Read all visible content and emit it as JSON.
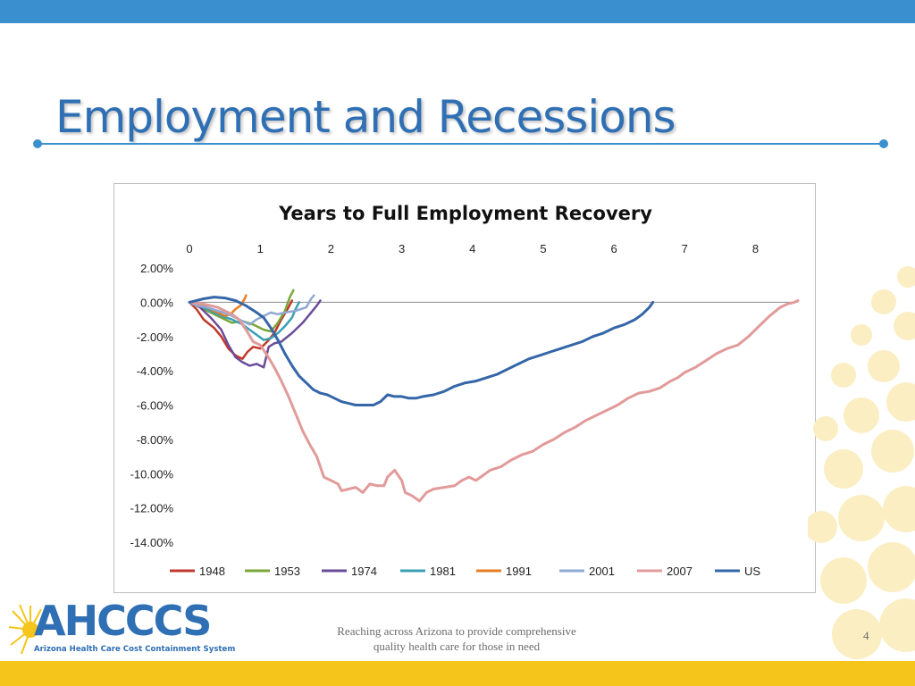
{
  "slide": {
    "title": "Employment and Recessions",
    "tagline_line1": "Reaching across Arizona to provide comprehensive",
    "tagline_line2": "quality health care for those in need",
    "page_number": "4",
    "colors": {
      "accent": "#3a8fcf",
      "title": "#2f6fb4",
      "footer": "#f6c51b"
    }
  },
  "logo": {
    "name": "AHCCCS",
    "subtitle": "Arizona Health Care Cost Containment System",
    "icon": "sun-icon"
  },
  "chart_data": {
    "type": "line",
    "title": "Years to Full Employment Recovery",
    "xlabel": "",
    "ylabel": "",
    "xlim": [
      0,
      8.6
    ],
    "ylim": [
      -14,
      2
    ],
    "x_ticks": [
      "0",
      "1",
      "2",
      "3",
      "4",
      "5",
      "6",
      "7",
      "8"
    ],
    "y_ticks": [
      "2.00%",
      "0.00%",
      "-2.00%",
      "-4.00%",
      "-6.00%",
      "-8.00%",
      "-10.00%",
      "-12.00%",
      "-14.00%"
    ],
    "x_axis_position": "top",
    "legend_position": "bottom",
    "grid": false,
    "series": [
      {
        "name": "1948",
        "color": "#c0392b",
        "points": [
          [
            0,
            0
          ],
          [
            0.1,
            -0.4
          ],
          [
            0.2,
            -1.0
          ],
          [
            0.35,
            -1.5
          ],
          [
            0.45,
            -2.0
          ],
          [
            0.55,
            -2.7
          ],
          [
            0.65,
            -3.1
          ],
          [
            0.75,
            -3.3
          ],
          [
            0.82,
            -2.9
          ],
          [
            0.9,
            -2.6
          ],
          [
            1.0,
            -2.7
          ],
          [
            1.1,
            -2.3
          ],
          [
            1.2,
            -1.8
          ],
          [
            1.3,
            -1.0
          ],
          [
            1.4,
            -0.3
          ],
          [
            1.45,
            0.1
          ]
        ]
      },
      {
        "name": "1953",
        "color": "#7aa63a",
        "points": [
          [
            0,
            0
          ],
          [
            0.15,
            -0.3
          ],
          [
            0.3,
            -0.6
          ],
          [
            0.45,
            -0.9
          ],
          [
            0.6,
            -1.2
          ],
          [
            0.75,
            -1.1
          ],
          [
            0.9,
            -1.3
          ],
          [
            1.05,
            -1.6
          ],
          [
            1.15,
            -1.7
          ],
          [
            1.25,
            -1.2
          ],
          [
            1.35,
            -0.5
          ],
          [
            1.42,
            0.3
          ],
          [
            1.47,
            0.7
          ]
        ]
      },
      {
        "name": "1974",
        "color": "#6b4c9a",
        "points": [
          [
            0,
            0
          ],
          [
            0.15,
            -0.3
          ],
          [
            0.3,
            -0.9
          ],
          [
            0.45,
            -1.6
          ],
          [
            0.55,
            -2.5
          ],
          [
            0.65,
            -3.2
          ],
          [
            0.75,
            -3.5
          ],
          [
            0.85,
            -3.7
          ],
          [
            0.95,
            -3.6
          ],
          [
            1.05,
            -3.8
          ],
          [
            1.12,
            -2.6
          ],
          [
            1.2,
            -2.4
          ],
          [
            1.3,
            -2.3
          ],
          [
            1.45,
            -1.8
          ],
          [
            1.6,
            -1.2
          ],
          [
            1.72,
            -0.6
          ],
          [
            1.8,
            -0.2
          ],
          [
            1.85,
            0.1
          ]
        ]
      },
      {
        "name": "1981",
        "color": "#3aa0b4",
        "points": [
          [
            0,
            0
          ],
          [
            0.15,
            -0.2
          ],
          [
            0.3,
            -0.5
          ],
          [
            0.45,
            -0.8
          ],
          [
            0.6,
            -1.0
          ],
          [
            0.75,
            -1.3
          ],
          [
            0.85,
            -1.6
          ],
          [
            0.95,
            -1.9
          ],
          [
            1.05,
            -2.2
          ],
          [
            1.15,
            -2.1
          ],
          [
            1.25,
            -1.8
          ],
          [
            1.35,
            -1.4
          ],
          [
            1.45,
            -0.9
          ],
          [
            1.5,
            -0.4
          ],
          [
            1.55,
            0.0
          ]
        ]
      },
      {
        "name": "1991",
        "color": "#e67e22",
        "points": [
          [
            0,
            0
          ],
          [
            0.1,
            -0.1
          ],
          [
            0.2,
            -0.2
          ],
          [
            0.3,
            -0.4
          ],
          [
            0.4,
            -0.6
          ],
          [
            0.5,
            -0.8
          ],
          [
            0.58,
            -0.7
          ],
          [
            0.65,
            -0.4
          ],
          [
            0.72,
            -0.2
          ],
          [
            0.78,
            0.2
          ],
          [
            0.8,
            0.4
          ]
        ]
      },
      {
        "name": "2001",
        "color": "#8fa9d6",
        "points": [
          [
            0,
            0
          ],
          [
            0.1,
            -0.2
          ],
          [
            0.25,
            -0.3
          ],
          [
            0.4,
            -0.5
          ],
          [
            0.55,
            -0.7
          ],
          [
            0.65,
            -0.9
          ],
          [
            0.75,
            -1.1
          ],
          [
            0.85,
            -1.3
          ],
          [
            0.95,
            -1.0
          ],
          [
            1.05,
            -0.8
          ],
          [
            1.15,
            -0.6
          ],
          [
            1.25,
            -0.7
          ],
          [
            1.35,
            -0.6
          ],
          [
            1.5,
            -0.5
          ],
          [
            1.65,
            -0.3
          ],
          [
            1.72,
            0.2
          ],
          [
            1.76,
            0.4
          ]
        ]
      },
      {
        "name": "2007",
        "color": "#e29a9a",
        "points": [
          [
            0,
            0
          ],
          [
            0.2,
            -0.1
          ],
          [
            0.4,
            -0.3
          ],
          [
            0.6,
            -0.7
          ],
          [
            0.7,
            -1.0
          ],
          [
            0.8,
            -1.6
          ],
          [
            0.9,
            -2.3
          ],
          [
            1.0,
            -2.5
          ],
          [
            1.1,
            -3.1
          ],
          [
            1.2,
            -3.8
          ],
          [
            1.3,
            -4.6
          ],
          [
            1.4,
            -5.5
          ],
          [
            1.5,
            -6.5
          ],
          [
            1.6,
            -7.5
          ],
          [
            1.7,
            -8.3
          ],
          [
            1.8,
            -9.0
          ],
          [
            1.85,
            -9.6
          ],
          [
            1.9,
            -10.2
          ],
          [
            2.0,
            -10.4
          ],
          [
            2.1,
            -10.6
          ],
          [
            2.15,
            -11.0
          ],
          [
            2.25,
            -10.9
          ],
          [
            2.35,
            -10.8
          ],
          [
            2.45,
            -11.1
          ],
          [
            2.55,
            -10.6
          ],
          [
            2.65,
            -10.7
          ],
          [
            2.75,
            -10.7
          ],
          [
            2.8,
            -10.2
          ],
          [
            2.9,
            -9.8
          ],
          [
            3.0,
            -10.4
          ],
          [
            3.05,
            -11.1
          ],
          [
            3.15,
            -11.3
          ],
          [
            3.25,
            -11.6
          ],
          [
            3.35,
            -11.1
          ],
          [
            3.45,
            -10.9
          ],
          [
            3.6,
            -10.8
          ],
          [
            3.75,
            -10.7
          ],
          [
            3.85,
            -10.4
          ],
          [
            3.95,
            -10.2
          ],
          [
            4.05,
            -10.4
          ],
          [
            4.15,
            -10.1
          ],
          [
            4.25,
            -9.8
          ],
          [
            4.4,
            -9.6
          ],
          [
            4.55,
            -9.2
          ],
          [
            4.7,
            -8.9
          ],
          [
            4.85,
            -8.7
          ],
          [
            5.0,
            -8.3
          ],
          [
            5.15,
            -8.0
          ],
          [
            5.3,
            -7.6
          ],
          [
            5.45,
            -7.3
          ],
          [
            5.6,
            -6.9
          ],
          [
            5.75,
            -6.6
          ],
          [
            5.9,
            -6.3
          ],
          [
            6.05,
            -6.0
          ],
          [
            6.2,
            -5.6
          ],
          [
            6.35,
            -5.3
          ],
          [
            6.5,
            -5.2
          ],
          [
            6.65,
            -5.0
          ],
          [
            6.8,
            -4.6
          ],
          [
            6.9,
            -4.4
          ],
          [
            7.0,
            -4.1
          ],
          [
            7.15,
            -3.8
          ],
          [
            7.3,
            -3.4
          ],
          [
            7.45,
            -3.0
          ],
          [
            7.6,
            -2.7
          ],
          [
            7.75,
            -2.5
          ],
          [
            7.9,
            -2.0
          ],
          [
            8.05,
            -1.4
          ],
          [
            8.2,
            -0.8
          ],
          [
            8.35,
            -0.3
          ],
          [
            8.45,
            -0.1
          ],
          [
            8.55,
            0.0
          ],
          [
            8.6,
            0.1
          ]
        ]
      },
      {
        "name": "US",
        "color": "#3466a8",
        "points": [
          [
            0,
            0
          ],
          [
            0.1,
            0.1
          ],
          [
            0.2,
            0.2
          ],
          [
            0.35,
            0.3
          ],
          [
            0.5,
            0.25
          ],
          [
            0.65,
            0.1
          ],
          [
            0.8,
            -0.2
          ],
          [
            0.95,
            -0.6
          ],
          [
            1.05,
            -0.9
          ],
          [
            1.15,
            -1.5
          ],
          [
            1.25,
            -2.2
          ],
          [
            1.35,
            -3.0
          ],
          [
            1.45,
            -3.7
          ],
          [
            1.55,
            -4.3
          ],
          [
            1.65,
            -4.7
          ],
          [
            1.75,
            -5.1
          ],
          [
            1.85,
            -5.3
          ],
          [
            1.95,
            -5.4
          ],
          [
            2.05,
            -5.6
          ],
          [
            2.15,
            -5.8
          ],
          [
            2.25,
            -5.9
          ],
          [
            2.35,
            -6.0
          ],
          [
            2.5,
            -6.0
          ],
          [
            2.6,
            -6.0
          ],
          [
            2.7,
            -5.8
          ],
          [
            2.8,
            -5.4
          ],
          [
            2.9,
            -5.5
          ],
          [
            3.0,
            -5.5
          ],
          [
            3.1,
            -5.6
          ],
          [
            3.2,
            -5.6
          ],
          [
            3.3,
            -5.5
          ],
          [
            3.45,
            -5.4
          ],
          [
            3.6,
            -5.2
          ],
          [
            3.75,
            -4.9
          ],
          [
            3.9,
            -4.7
          ],
          [
            4.05,
            -4.6
          ],
          [
            4.2,
            -4.4
          ],
          [
            4.35,
            -4.2
          ],
          [
            4.5,
            -3.9
          ],
          [
            4.65,
            -3.6
          ],
          [
            4.8,
            -3.3
          ],
          [
            4.95,
            -3.1
          ],
          [
            5.1,
            -2.9
          ],
          [
            5.25,
            -2.7
          ],
          [
            5.4,
            -2.5
          ],
          [
            5.55,
            -2.3
          ],
          [
            5.7,
            -2.0
          ],
          [
            5.85,
            -1.8
          ],
          [
            6.0,
            -1.5
          ],
          [
            6.15,
            -1.3
          ],
          [
            6.3,
            -1.0
          ],
          [
            6.4,
            -0.7
          ],
          [
            6.5,
            -0.3
          ],
          [
            6.55,
            0.0
          ]
        ]
      }
    ]
  }
}
